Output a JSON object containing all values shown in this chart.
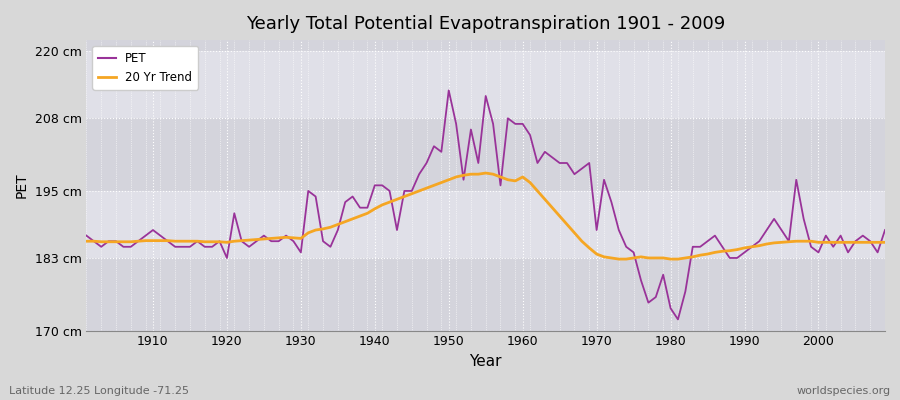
{
  "title": "Yearly Total Potential Evapotranspiration 1901 - 2009",
  "xlabel": "Year",
  "ylabel": "PET",
  "footnote_left": "Latitude 12.25 Longitude -71.25",
  "footnote_right": "worldspecies.org",
  "ylim": [
    170,
    222
  ],
  "yticks": [
    170,
    183,
    195,
    208,
    220
  ],
  "ytick_labels": [
    "170 cm",
    "183 cm",
    "195 cm",
    "208 cm",
    "220 cm"
  ],
  "xlim": [
    1901,
    2009
  ],
  "xticks": [
    1910,
    1920,
    1930,
    1940,
    1950,
    1960,
    1970,
    1980,
    1990,
    2000
  ],
  "pet_color": "#993399",
  "trend_color": "#f5a623",
  "background_color": "#d8d8d8",
  "plot_bg_color": "#e0e0e8",
  "grid_color": "#ffffff",
  "band_colors": [
    "#d4d4dc",
    "#e0e0e8"
  ],
  "pet_years": [
    1901,
    1902,
    1903,
    1904,
    1905,
    1906,
    1907,
    1908,
    1909,
    1910,
    1911,
    1912,
    1913,
    1914,
    1915,
    1916,
    1917,
    1918,
    1919,
    1920,
    1921,
    1922,
    1923,
    1924,
    1925,
    1926,
    1927,
    1928,
    1929,
    1930,
    1931,
    1932,
    1933,
    1934,
    1935,
    1936,
    1937,
    1938,
    1939,
    1940,
    1941,
    1942,
    1943,
    1944,
    1945,
    1946,
    1947,
    1948,
    1949,
    1950,
    1951,
    1952,
    1953,
    1954,
    1955,
    1956,
    1957,
    1958,
    1959,
    1960,
    1961,
    1962,
    1963,
    1964,
    1965,
    1966,
    1967,
    1968,
    1969,
    1970,
    1971,
    1972,
    1973,
    1974,
    1975,
    1976,
    1977,
    1978,
    1979,
    1980,
    1981,
    1982,
    1983,
    1984,
    1985,
    1986,
    1987,
    1988,
    1989,
    1990,
    1991,
    1992,
    1993,
    1994,
    1995,
    1996,
    1997,
    1998,
    1999,
    2000,
    2001,
    2002,
    2003,
    2004,
    2005,
    2006,
    2007,
    2008,
    2009
  ],
  "pet_values": [
    187,
    186,
    185,
    186,
    186,
    185,
    185,
    186,
    187,
    188,
    187,
    186,
    185,
    185,
    185,
    186,
    185,
    185,
    186,
    183,
    191,
    186,
    185,
    186,
    187,
    186,
    186,
    187,
    186,
    184,
    195,
    194,
    186,
    185,
    188,
    193,
    194,
    192,
    192,
    196,
    196,
    195,
    188,
    195,
    195,
    198,
    200,
    203,
    202,
    213,
    207,
    197,
    206,
    200,
    212,
    207,
    196,
    208,
    207,
    207,
    205,
    200,
    202,
    201,
    200,
    200,
    198,
    199,
    200,
    188,
    197,
    193,
    188,
    185,
    184,
    179,
    175,
    176,
    180,
    174,
    172,
    177,
    185,
    185,
    186,
    187,
    185,
    183,
    183,
    184,
    185,
    186,
    188,
    190,
    188,
    186,
    197,
    190,
    185,
    184,
    187,
    185,
    187,
    184,
    186,
    187,
    186,
    184,
    188
  ],
  "trend_years": [
    1901,
    1902,
    1903,
    1904,
    1905,
    1906,
    1907,
    1908,
    1909,
    1910,
    1911,
    1912,
    1913,
    1914,
    1915,
    1916,
    1917,
    1918,
    1919,
    1920,
    1921,
    1922,
    1923,
    1924,
    1925,
    1926,
    1927,
    1928,
    1929,
    1930,
    1931,
    1932,
    1933,
    1934,
    1935,
    1936,
    1937,
    1938,
    1939,
    1940,
    1941,
    1942,
    1943,
    1944,
    1945,
    1946,
    1947,
    1948,
    1949,
    1950,
    1951,
    1952,
    1953,
    1954,
    1955,
    1956,
    1957,
    1958,
    1959,
    1960,
    1961,
    1962,
    1963,
    1964,
    1965,
    1966,
    1967,
    1968,
    1969,
    1970,
    1971,
    1972,
    1973,
    1974,
    1975,
    1976,
    1977,
    1978,
    1979,
    1980,
    1981,
    1982,
    1983,
    1984,
    1985,
    1986,
    1987,
    1988,
    1989,
    1990,
    1991,
    1992,
    1993,
    1994,
    1995,
    1996,
    1997,
    1998,
    1999,
    2000,
    2001,
    2002,
    2003,
    2004,
    2005,
    2006,
    2007,
    2008,
    2009
  ],
  "trend_values": [
    186.0,
    186.0,
    185.9,
    185.9,
    185.9,
    185.9,
    185.9,
    186.0,
    186.1,
    186.1,
    186.1,
    186.1,
    186.0,
    186.0,
    186.0,
    186.0,
    185.9,
    185.9,
    185.9,
    185.8,
    186.0,
    186.1,
    186.2,
    186.3,
    186.4,
    186.5,
    186.6,
    186.7,
    186.6,
    186.5,
    187.5,
    188.0,
    188.2,
    188.5,
    189.0,
    189.5,
    190.0,
    190.5,
    191.0,
    191.8,
    192.5,
    193.0,
    193.5,
    194.0,
    194.5,
    195.0,
    195.5,
    196.0,
    196.5,
    197.0,
    197.5,
    197.8,
    198.0,
    198.0,
    198.2,
    198.0,
    197.5,
    197.0,
    196.8,
    197.5,
    196.5,
    195.0,
    193.5,
    192.0,
    190.5,
    189.0,
    187.5,
    186.0,
    184.8,
    183.7,
    183.2,
    183.0,
    182.8,
    182.8,
    183.0,
    183.2,
    183.0,
    183.0,
    183.0,
    182.8,
    182.8,
    183.0,
    183.2,
    183.5,
    183.7,
    184.0,
    184.2,
    184.3,
    184.5,
    184.8,
    185.0,
    185.2,
    185.5,
    185.7,
    185.8,
    185.9,
    186.0,
    186.0,
    186.0,
    185.8,
    185.8,
    185.8,
    185.8,
    185.8,
    185.8,
    185.8,
    185.8,
    185.8,
    185.8
  ]
}
